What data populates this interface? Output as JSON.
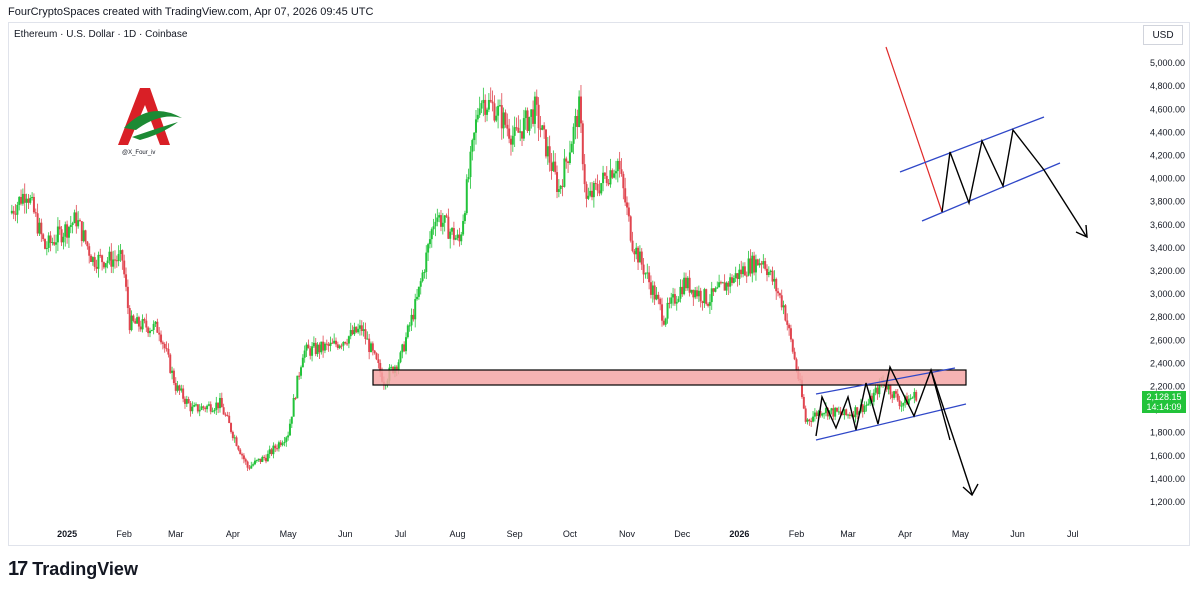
{
  "header": {
    "credit": "FourCryptoSpaces created with TradingView.com, Apr 07, 2026 09:45 UTC"
  },
  "symbol": {
    "description": "Ethereum · U.S. Dollar · 1D · Coinbase"
  },
  "currency_label": "USD",
  "watermark": {
    "handle": "@X_Four_iv"
  },
  "footer": {
    "brand_text": "TradingView"
  },
  "colors": {
    "up": "#22c33a",
    "down": "#e0454f",
    "zone_fill": "#f4a6a6",
    "channel": "#2f47c8",
    "price_label": "#22c33a"
  },
  "chart_data": {
    "type": "candlestick",
    "x_tick_labels": [
      "2025",
      "Feb",
      "Mar",
      "Apr",
      "May",
      "Jun",
      "Jul",
      "Aug",
      "Sep",
      "Oct",
      "Nov",
      "Dec",
      "2026",
      "Feb",
      "Mar",
      "Apr",
      "May",
      "Jun",
      "Jul"
    ],
    "y_ticks": [
      1200,
      1400,
      1600,
      1800,
      2000,
      2200,
      2400,
      2600,
      2800,
      3000,
      3200,
      3400,
      3600,
      3800,
      4000,
      4200,
      4400,
      4600,
      4800,
      5000
    ],
    "y_tick_labels": [
      "1,200.00",
      "1,400.00",
      "1,600.00",
      "1,800.00",
      "2,000.00",
      "2,200.00",
      "2,400.00",
      "2,600.00",
      "2,800.00",
      "3,000.00",
      "3,200.00",
      "3,400.00",
      "3,600.00",
      "3,800.00",
      "4,000.00",
      "4,200.00",
      "4,400.00",
      "4,600.00",
      "4,800.00",
      "5,000.00"
    ],
    "ylim": [
      1080,
      5150
    ],
    "date_range": [
      "2024-12-01",
      "2026-07-31"
    ],
    "last_price": 2128.15,
    "last_price_label": "2,128.15",
    "countdown_label": "14:14:09",
    "close_path": [
      [
        "2024-12-01",
        3700
      ],
      [
        "2024-12-10",
        3900
      ],
      [
        "2024-12-20",
        3400
      ],
      [
        "2025-01-06",
        3650
      ],
      [
        "2025-01-15",
        3300
      ],
      [
        "2025-01-31",
        3300
      ],
      [
        "2025-02-04",
        2750
      ],
      [
        "2025-02-20",
        2700
      ],
      [
        "2025-03-01",
        2200
      ],
      [
        "2025-03-10",
        2000
      ],
      [
        "2025-03-25",
        2050
      ],
      [
        "2025-04-09",
        1500
      ],
      [
        "2025-04-20",
        1600
      ],
      [
        "2025-05-01",
        1800
      ],
      [
        "2025-05-09",
        2500
      ],
      [
        "2025-05-25",
        2550
      ],
      [
        "2025-06-10",
        2700
      ],
      [
        "2025-06-22",
        2250
      ],
      [
        "2025-07-01",
        2450
      ],
      [
        "2025-07-10",
        2950
      ],
      [
        "2025-07-20",
        3700
      ],
      [
        "2025-08-02",
        3450
      ],
      [
        "2025-08-13",
        4700
      ],
      [
        "2025-08-22",
        4600
      ],
      [
        "2025-09-01",
        4350
      ],
      [
        "2025-09-12",
        4600
      ],
      [
        "2025-09-25",
        3900
      ],
      [
        "2025-10-06",
        4600
      ],
      [
        "2025-10-10",
        3800
      ],
      [
        "2025-10-27",
        4150
      ],
      [
        "2025-11-04",
        3450
      ],
      [
        "2025-11-21",
        2800
      ],
      [
        "2025-12-02",
        3100
      ],
      [
        "2025-12-15",
        2950
      ],
      [
        "2026-01-06",
        3250
      ],
      [
        "2026-01-14",
        3300
      ],
      [
        "2026-01-25",
        2900
      ],
      [
        "2026-02-03",
        2200
      ],
      [
        "2026-02-06",
        1900
      ],
      [
        "2026-02-15",
        2000
      ],
      [
        "2026-02-28",
        1950
      ],
      [
        "2026-03-12",
        2050
      ],
      [
        "2026-03-20",
        2250
      ],
      [
        "2026-03-30",
        2050
      ],
      [
        "2026-04-07",
        2128
      ]
    ]
  }
}
